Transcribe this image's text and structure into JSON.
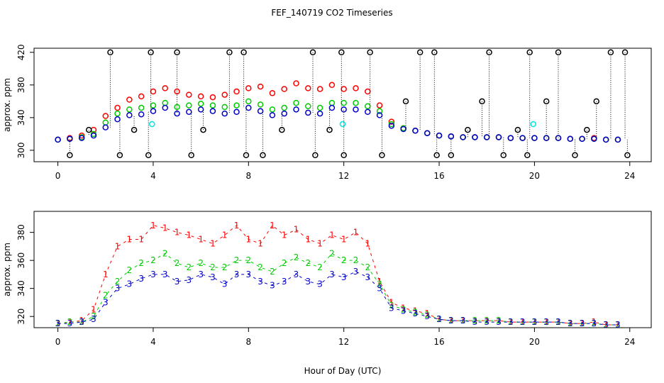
{
  "chart_data": [
    {
      "type": "scatter",
      "title": "FEF_140719  CO2 Timeseries",
      "ylabel": "approx. ppm",
      "xlim": [
        -1,
        24.9
      ],
      "xticks": [
        0,
        4,
        8,
        12,
        16,
        20,
        24
      ],
      "ylim": [
        286,
        425
      ],
      "yticks": [
        300,
        340,
        380,
        420
      ],
      "series": [
        {
          "color": "#ff0000",
          "x": [
            0,
            0.5,
            1,
            1.5,
            2,
            2.5,
            3,
            3.5,
            4,
            4.5,
            5,
            5.5,
            6,
            6.5,
            7,
            7.5,
            8,
            8.5,
            9,
            9.5,
            10,
            10.5,
            11,
            11.5,
            12,
            12.5,
            13,
            13.5,
            14,
            14.5,
            15,
            15.5,
            16,
            16.5,
            17,
            17.5,
            18,
            18.5,
            19,
            19.5,
            20,
            20.5,
            21,
            21.5,
            22,
            22.5,
            23,
            23.5
          ],
          "values": [
            313,
            315,
            318,
            325,
            342,
            352,
            362,
            366,
            372,
            376,
            372,
            368,
            366,
            365,
            368,
            372,
            376,
            378,
            370,
            375,
            382,
            376,
            375,
            380,
            375,
            376,
            372,
            355,
            335,
            327,
            324,
            321,
            318,
            317,
            316,
            316,
            316,
            316,
            315,
            315,
            315,
            315,
            315,
            314,
            314,
            315,
            313,
            313
          ]
        },
        {
          "color": "#00cc00",
          "x": [
            0,
            0.5,
            1,
            1.5,
            2,
            2.5,
            3,
            3.5,
            4,
            4.5,
            5,
            5.5,
            6,
            6.5,
            7,
            7.5,
            8,
            8.5,
            9,
            9.5,
            10,
            10.5,
            11,
            11.5,
            12,
            12.5,
            13,
            13.5,
            14,
            14.5,
            15,
            15.5,
            16,
            16.5,
            17,
            17.5,
            18,
            18.5,
            19,
            19.5,
            20,
            20.5,
            21,
            21.5,
            22,
            22.5,
            23,
            23.5
          ],
          "values": [
            313,
            314,
            316,
            320,
            334,
            345,
            350,
            352,
            355,
            358,
            353,
            355,
            357,
            355,
            353,
            355,
            360,
            356,
            350,
            352,
            358,
            354,
            352,
            358,
            358,
            358,
            354,
            348,
            332,
            327,
            324,
            321,
            318,
            317,
            316,
            316,
            316,
            316,
            315,
            315,
            315,
            315,
            315,
            314,
            314,
            314,
            313,
            313
          ]
        },
        {
          "color": "#0000cc",
          "x": [
            0,
            0.5,
            1,
            1.5,
            2,
            2.5,
            3,
            3.5,
            4,
            4.5,
            5,
            5.5,
            6,
            6.5,
            7,
            7.5,
            8,
            8.5,
            9,
            9.5,
            10,
            10.5,
            11,
            11.5,
            12,
            12.5,
            13,
            13.5,
            14,
            14.5,
            15,
            15.5,
            16,
            16.5,
            17,
            17.5,
            18,
            18.5,
            19,
            19.5,
            20,
            20.5,
            21,
            21.5,
            22,
            22.5,
            23,
            23.5
          ],
          "values": [
            313,
            314,
            315,
            318,
            328,
            338,
            343,
            344,
            348,
            352,
            345,
            347,
            350,
            348,
            345,
            347,
            352,
            348,
            343,
            345,
            350,
            346,
            345,
            352,
            350,
            350,
            347,
            343,
            330,
            326,
            324,
            321,
            318,
            317,
            316,
            316,
            316,
            316,
            315,
            315,
            315,
            315,
            315,
            314,
            314,
            314,
            313,
            313
          ]
        },
        {
          "color": "#000000",
          "x": [
            0.5,
            1.3,
            2.2,
            2.6,
            3.2,
            3.8,
            3.9,
            5,
            5.6,
            6.1,
            7.2,
            7.8,
            7.9,
            8.6,
            9.4,
            10.7,
            10.8,
            11.4,
            11.9,
            12,
            13.1,
            13.6,
            14.6,
            15.2,
            15.8,
            15.9,
            16.5,
            17.2,
            17.8,
            18.1,
            18.7,
            19.3,
            19.7,
            19.8,
            20.5,
            21,
            21.7,
            22.2,
            22.6,
            23.2,
            23.8,
            23.9
          ],
          "values": [
            294,
            325,
            420,
            294,
            325,
            294,
            420,
            420,
            294,
            325,
            420,
            420,
            294,
            294,
            325,
            420,
            294,
            325,
            420,
            294,
            420,
            294,
            360,
            420,
            420,
            294,
            294,
            325,
            360,
            420,
            294,
            325,
            294,
            420,
            360,
            420,
            294,
            325,
            360,
            420,
            420,
            294
          ]
        },
        {
          "color": "#00e5e5",
          "x": [
            3.95,
            11.95,
            19.95
          ],
          "values": [
            332,
            332,
            332
          ]
        }
      ]
    },
    {
      "type": "numbered",
      "xlabel": "Hour of Day (UTC)",
      "ylabel": "approx. ppm",
      "xlim": [
        -1,
        24.9
      ],
      "xticks": [
        0,
        4,
        8,
        12,
        16,
        20,
        24
      ],
      "ylim": [
        312,
        395
      ],
      "yticks": [
        320,
        340,
        360,
        380
      ],
      "x": [
        0,
        0.5,
        1,
        1.5,
        2,
        2.5,
        3,
        3.5,
        4,
        4.5,
        5,
        5.5,
        6,
        6.5,
        7,
        7.5,
        8,
        8.5,
        9,
        9.5,
        10,
        10.5,
        11,
        11.5,
        12,
        12.5,
        13,
        13.5,
        14,
        14.5,
        15,
        15.5,
        16,
        16.5,
        17,
        17.5,
        18,
        18.5,
        19,
        19.5,
        20,
        20.5,
        21,
        21.5,
        22,
        22.5,
        23,
        23.5
      ],
      "series": [
        {
          "marker": "1",
          "color": "#ff0000",
          "values": [
            315,
            316,
            317,
            325,
            350,
            370,
            375,
            375,
            385,
            383,
            380,
            378,
            375,
            372,
            378,
            385,
            375,
            372,
            385,
            378,
            382,
            375,
            372,
            378,
            375,
            380,
            372,
            345,
            330,
            326,
            324,
            322,
            318,
            317,
            317,
            317,
            317,
            317,
            316,
            316,
            316,
            316,
            316,
            315,
            315,
            316,
            314,
            314
          ]
        },
        {
          "marker": "2",
          "color": "#00cc00",
          "values": [
            315,
            316,
            316,
            320,
            335,
            345,
            353,
            358,
            360,
            365,
            358,
            355,
            358,
            355,
            355,
            360,
            360,
            355,
            352,
            358,
            362,
            358,
            355,
            365,
            360,
            360,
            355,
            343,
            328,
            325,
            323,
            321,
            318,
            317,
            317,
            317,
            317,
            317,
            316,
            316,
            316,
            316,
            316,
            315,
            315,
            315,
            314,
            314
          ]
        },
        {
          "marker": "3",
          "color": "#0000cc",
          "values": [
            315,
            315,
            316,
            318,
            330,
            340,
            343,
            347,
            350,
            350,
            345,
            346,
            350,
            348,
            343,
            350,
            350,
            345,
            342,
            345,
            350,
            345,
            343,
            350,
            348,
            352,
            348,
            340,
            326,
            324,
            322,
            320,
            318,
            317,
            317,
            316,
            316,
            316,
            316,
            316,
            316,
            316,
            316,
            315,
            315,
            315,
            314,
            314
          ]
        }
      ]
    }
  ]
}
